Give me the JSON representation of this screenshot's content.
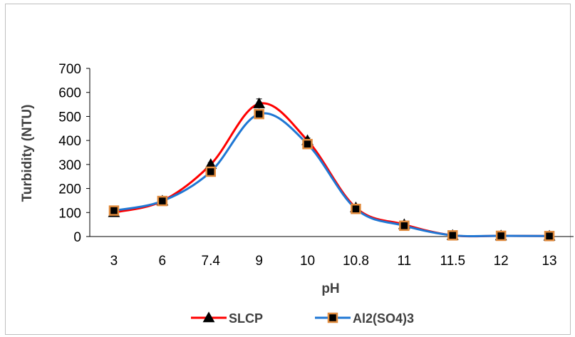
{
  "chart_data": {
    "type": "line",
    "categories": [
      "3",
      "6",
      "7.4",
      "9",
      "10",
      "10.8",
      "11",
      "11.5",
      "12",
      "13"
    ],
    "xlabel": "pH",
    "ylabel": "Turbidity (NTU)",
    "ylim": [
      0,
      700
    ],
    "yticks": [
      "0",
      "100",
      "200",
      "300",
      "400",
      "500",
      "600",
      "700"
    ],
    "grid": false,
    "legend_position": "bottom",
    "series": [
      {
        "name": "SLCP",
        "color": "#ff0000",
        "marker": "triangle",
        "values": [
          100,
          148,
          300,
          553,
          400,
          120,
          50,
          5,
          3,
          2
        ],
        "error": [
          5,
          5,
          8,
          20,
          10,
          5,
          4,
          2,
          2,
          2
        ]
      },
      {
        "name": "Al2(SO4)3",
        "color": "#1f77d4",
        "marker": "square",
        "marker_fill": "#000000",
        "marker_edge": "#e08a3c",
        "values": [
          108,
          148,
          270,
          510,
          385,
          115,
          45,
          5,
          3,
          2
        ],
        "error": [
          5,
          5,
          8,
          12,
          10,
          5,
          4,
          2,
          2,
          2
        ]
      }
    ]
  }
}
